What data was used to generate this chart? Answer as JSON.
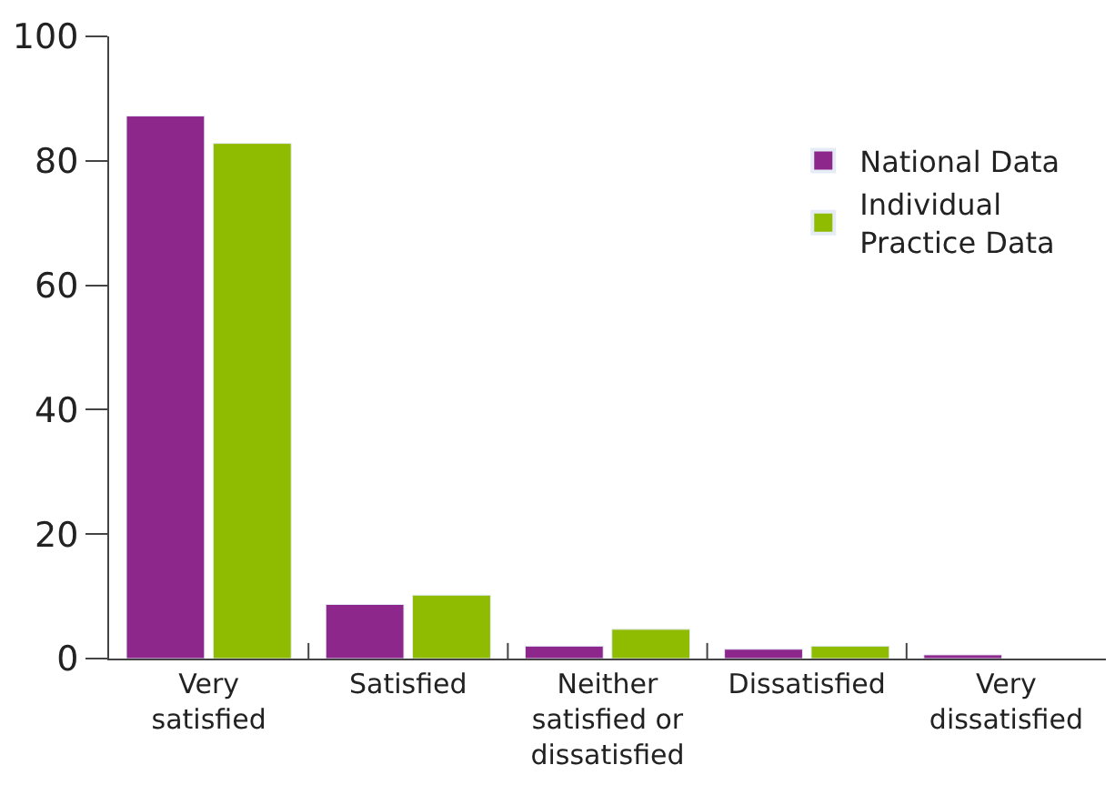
{
  "chart_data": {
    "type": "bar",
    "categories": [
      "Very\nsatisfied",
      "Satisfied",
      "Neither\nsatisfied or\ndissatisfied",
      "Dissatisfied",
      "Very\ndissatisfied"
    ],
    "series": [
      {
        "name": "National Data",
        "color": "#8e278c",
        "values": [
          87.2,
          8.7,
          2.0,
          1.5,
          0.6
        ]
      },
      {
        "name": "Individual\nPractice Data",
        "color": "#8fbb00",
        "values": [
          82.8,
          10.2,
          4.7,
          2.0,
          null
        ]
      }
    ],
    "ylim": [
      0,
      100
    ],
    "yticks": [
      0,
      20,
      40,
      60,
      80,
      100
    ],
    "legend": "top right"
  }
}
